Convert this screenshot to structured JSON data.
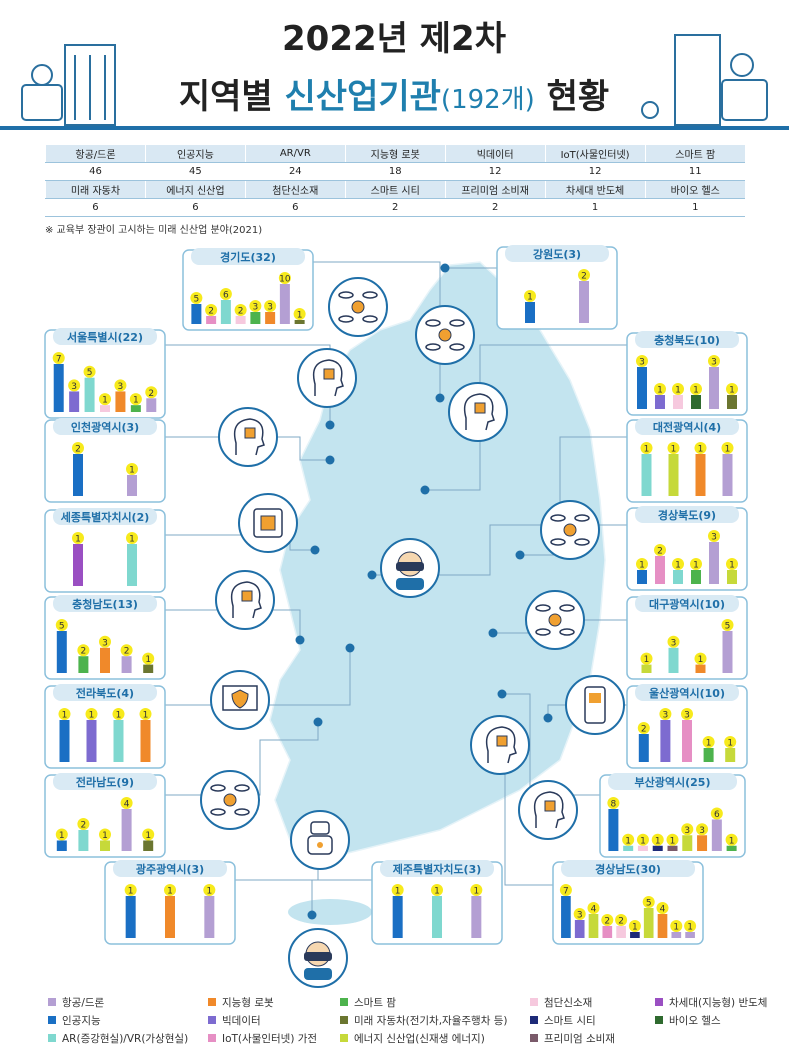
{
  "header": {
    "title_line1": "2022년 제2차",
    "title_line2": {
      "pre": "지역별 ",
      "highlight": "신산업기관",
      "count": "(192개)",
      "post": " 현황"
    }
  },
  "table": {
    "rows": [
      {
        "headers": [
          "항공/드론",
          "인공지능",
          "AR/VR",
          "지능형 로봇",
          "빅데이터",
          "IoT(사물인터넷)",
          "스마트 팜"
        ],
        "values": [
          46,
          45,
          24,
          18,
          12,
          12,
          11
        ]
      },
      {
        "headers": [
          "미래 자동차",
          "에너지 신산업",
          "첨단신소재",
          "스마트 시티",
          "프리미엄 소비재",
          "차세대 반도체",
          "바이오 헬스"
        ],
        "values": [
          6,
          6,
          6,
          2,
          2,
          1,
          1
        ]
      }
    ],
    "note": "※ 교육부 장관이 고시하는 미래 신산업 분야(2021)"
  },
  "legend": {
    "items": [
      {
        "label": "항공/드론",
        "color": "#b49fd3"
      },
      {
        "label": "인공지능",
        "color": "#1a6fc4"
      },
      {
        "label": "AR(증강현실)/VR(가상현실)",
        "color": "#7fd8cf"
      },
      {
        "label": "지능형 로봇",
        "color": "#f0892a"
      },
      {
        "label": "빅데이터",
        "color": "#7d6bd0"
      },
      {
        "label": "IoT(사물인터넷) 가전",
        "color": "#e68fc4"
      },
      {
        "label": "스마트 팜",
        "color": "#4db34d"
      },
      {
        "label": "미래 자동차(전기차,자율주행차 등)",
        "color": "#6b7630"
      },
      {
        "label": "에너지 신산업(신재생 에너지)",
        "color": "#c6d93a"
      },
      {
        "label": "첨단신소재",
        "color": "#f6c9de"
      },
      {
        "label": "스마트 시티",
        "color": "#1d2a78"
      },
      {
        "label": "프리미엄 소비재",
        "color": "#7a5a6a"
      },
      {
        "label": "차세대(지능형) 반도체",
        "color": "#9a4fc2"
      },
      {
        "label": "바이오 헬스",
        "color": "#2f6a2f"
      }
    ]
  },
  "regions": [
    {
      "name": "경기도(32)",
      "values": [
        5,
        2,
        6,
        2,
        3,
        3,
        10,
        1
      ],
      "colors": [
        "#1a6fc4",
        "#e68fc4",
        "#7fd8cf",
        "#f6c9de",
        "#4db34d",
        "#f0892a",
        "#b49fd3",
        "#6b7630"
      ]
    },
    {
      "name": "강원도(3)",
      "values": [
        1,
        2
      ],
      "colors": [
        "#1a6fc4",
        "#b49fd3"
      ]
    },
    {
      "name": "서울특별시(22)",
      "values": [
        7,
        3,
        5,
        1,
        3,
        1,
        2
      ],
      "colors": [
        "#1a6fc4",
        "#7d6bd0",
        "#7fd8cf",
        "#f6c9de",
        "#f0892a",
        "#4db34d",
        "#b49fd3"
      ]
    },
    {
      "name": "충청북도(10)",
      "values": [
        3,
        1,
        1,
        1,
        3,
        1
      ],
      "colors": [
        "#1a6fc4",
        "#7d6bd0",
        "#f6c9de",
        "#2f6a2f",
        "#b49fd3",
        "#6b7630"
      ]
    },
    {
      "name": "인천광역시(3)",
      "values": [
        2,
        1
      ],
      "colors": [
        "#1a6fc4",
        "#b49fd3"
      ]
    },
    {
      "name": "대전광역시(4)",
      "values": [
        1,
        1,
        1,
        1
      ],
      "colors": [
        "#7fd8cf",
        "#c6d93a",
        "#f0892a",
        "#b49fd3"
      ]
    },
    {
      "name": "세종특별자치시(2)",
      "values": [
        1,
        1
      ],
      "colors": [
        "#9a4fc2",
        "#7fd8cf"
      ]
    },
    {
      "name": "경상북도(9)",
      "values": [
        1,
        2,
        1,
        1,
        3,
        1
      ],
      "colors": [
        "#1a6fc4",
        "#e68fc4",
        "#7fd8cf",
        "#4db34d",
        "#b49fd3",
        "#c6d93a"
      ]
    },
    {
      "name": "충청남도(13)",
      "values": [
        5,
        2,
        3,
        2,
        1
      ],
      "colors": [
        "#1a6fc4",
        "#4db34d",
        "#f0892a",
        "#b49fd3",
        "#6b7630"
      ]
    },
    {
      "name": "대구광역시(10)",
      "values": [
        1,
        3,
        1,
        5
      ],
      "colors": [
        "#c6d93a",
        "#7fd8cf",
        "#f0892a",
        "#b49fd3"
      ]
    },
    {
      "name": "전라북도(4)",
      "values": [
        1,
        1,
        1,
        1
      ],
      "colors": [
        "#1a6fc4",
        "#7d6bd0",
        "#7fd8cf",
        "#f0892a"
      ]
    },
    {
      "name": "울산광역시(10)",
      "values": [
        2,
        3,
        3,
        1,
        1
      ],
      "colors": [
        "#1a6fc4",
        "#7d6bd0",
        "#e68fc4",
        "#4db34d",
        "#c6d93a"
      ]
    },
    {
      "name": "전라남도(9)",
      "values": [
        1,
        2,
        1,
        4,
        1
      ],
      "colors": [
        "#1a6fc4",
        "#7fd8cf",
        "#c6d93a",
        "#b49fd3",
        "#6b7630"
      ]
    },
    {
      "name": "부산광역시(25)",
      "values": [
        8,
        1,
        1,
        1,
        1,
        3,
        3,
        6,
        1
      ],
      "colors": [
        "#1a6fc4",
        "#7fd8cf",
        "#f6c9de",
        "#1d2a78",
        "#7a5a6a",
        "#c6d93a",
        "#f0892a",
        "#b49fd3",
        "#4db34d"
      ]
    },
    {
      "name": "광주광역시(3)",
      "values": [
        1,
        1,
        1
      ],
      "colors": [
        "#1a6fc4",
        "#f0892a",
        "#b49fd3"
      ]
    },
    {
      "name": "제주특별자치도(3)",
      "values": [
        1,
        1,
        1
      ],
      "colors": [
        "#1a6fc4",
        "#7fd8cf",
        "#b49fd3"
      ]
    },
    {
      "name": "경상남도(30)",
      "values": [
        7,
        3,
        4,
        2,
        2,
        1,
        5,
        4,
        1,
        1
      ],
      "colors": [
        "#1a6fc4",
        "#7d6bd0",
        "#c6d93a",
        "#e68fc4",
        "#f6c9de",
        "#1d2a78",
        "#c6d93a",
        "#f0892a",
        "#b49fd3",
        "#b49fd3"
      ]
    }
  ]
}
